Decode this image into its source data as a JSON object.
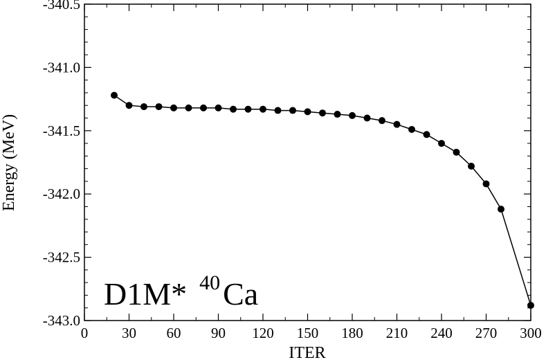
{
  "chart_data": {
    "type": "line",
    "xlabel": "ITER",
    "ylabel": "Energy (MeV)",
    "xlim": [
      0,
      300
    ],
    "ylim": [
      -343.0,
      -340.5
    ],
    "x_ticks": [
      0,
      30,
      60,
      90,
      120,
      150,
      180,
      210,
      240,
      270,
      300
    ],
    "x_tick_labels": [
      "0",
      "30",
      "60",
      "90",
      "120",
      "150",
      "180",
      "210",
      "240",
      "270",
      "300"
    ],
    "y_ticks": [
      -343.0,
      -342.5,
      -342.0,
      -341.5,
      -341.0,
      -340.5
    ],
    "y_tick_labels": [
      "-343.0",
      "-342.5",
      "-342.0",
      "-341.5",
      "-341.0",
      "-340.5"
    ],
    "grid": false,
    "legend": "none",
    "annotation": {
      "main": "D1M*",
      "superscript": "40",
      "element": "Ca"
    },
    "series": [
      {
        "color": "#000000",
        "marker": "circle",
        "x": [
          20,
          30,
          40,
          50,
          60,
          70,
          80,
          90,
          100,
          110,
          120,
          130,
          140,
          150,
          160,
          170,
          180,
          190,
          200,
          210,
          220,
          230,
          240,
          250,
          260,
          270,
          280,
          300
        ],
        "y": [
          -341.22,
          -341.3,
          -341.31,
          -341.31,
          -341.32,
          -341.32,
          -341.32,
          -341.32,
          -341.33,
          -341.33,
          -341.33,
          -341.34,
          -341.34,
          -341.35,
          -341.36,
          -341.37,
          -341.38,
          -341.4,
          -341.42,
          -341.45,
          -341.49,
          -341.53,
          -341.6,
          -341.67,
          -341.78,
          -341.92,
          -342.12,
          -342.88
        ]
      }
    ]
  }
}
